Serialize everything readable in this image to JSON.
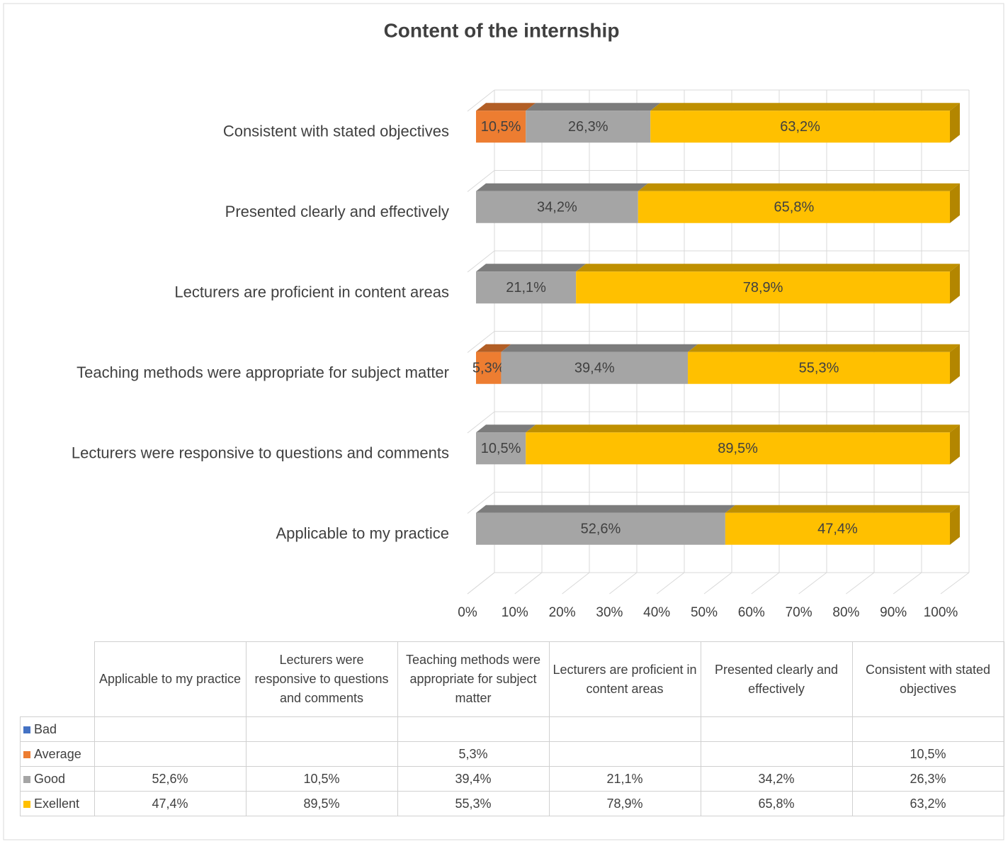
{
  "chart_data": {
    "type": "bar",
    "orientation": "horizontal",
    "stacked": true,
    "title": "Content of the internship",
    "categories": [
      "Applicable to my practice",
      "Lecturers were responsive to questions and comments",
      "Teaching methods were appropriate for subject matter",
      "Lecturers are proficient in content areas",
      "Presented clearly and effectively",
      "Consistent with stated objectives"
    ],
    "series": [
      {
        "name": "Bad",
        "color": "#4472c4",
        "values": [
          null,
          null,
          null,
          null,
          null,
          null
        ],
        "value_labels": [
          null,
          null,
          null,
          null,
          null,
          null
        ]
      },
      {
        "name": "Average",
        "color": "#ed7d31",
        "values": [
          null,
          null,
          5.3,
          null,
          null,
          10.5
        ],
        "value_labels": [
          null,
          null,
          "5,3%",
          null,
          null,
          "10,5%"
        ]
      },
      {
        "name": "Good",
        "color": "#a5a5a5",
        "values": [
          52.6,
          10.5,
          39.4,
          21.1,
          34.2,
          26.3
        ],
        "value_labels": [
          "52,6%",
          "10,5%",
          "39,4%",
          "21,1%",
          "34,2%",
          "26,3%"
        ]
      },
      {
        "name": "Exellent",
        "color": "#ffc000",
        "values": [
          47.4,
          89.5,
          55.3,
          78.9,
          65.8,
          63.2
        ],
        "value_labels": [
          "47,4%",
          "89,5%",
          "55,3%",
          "78,9%",
          "65,8%",
          "63,2%"
        ]
      }
    ],
    "xlim": [
      0,
      100
    ],
    "xticks": [
      {
        "value": 0,
        "label": "0%"
      },
      {
        "value": 10,
        "label": "10%"
      },
      {
        "value": 20,
        "label": "20%"
      },
      {
        "value": 30,
        "label": "30%"
      },
      {
        "value": 40,
        "label": "40%"
      },
      {
        "value": 50,
        "label": "50%"
      },
      {
        "value": 60,
        "label": "60%"
      },
      {
        "value": 70,
        "label": "70%"
      },
      {
        "value": 80,
        "label": "80%"
      },
      {
        "value": 90,
        "label": "90%"
      },
      {
        "value": 100,
        "label": "100%"
      }
    ],
    "grid": true
  }
}
